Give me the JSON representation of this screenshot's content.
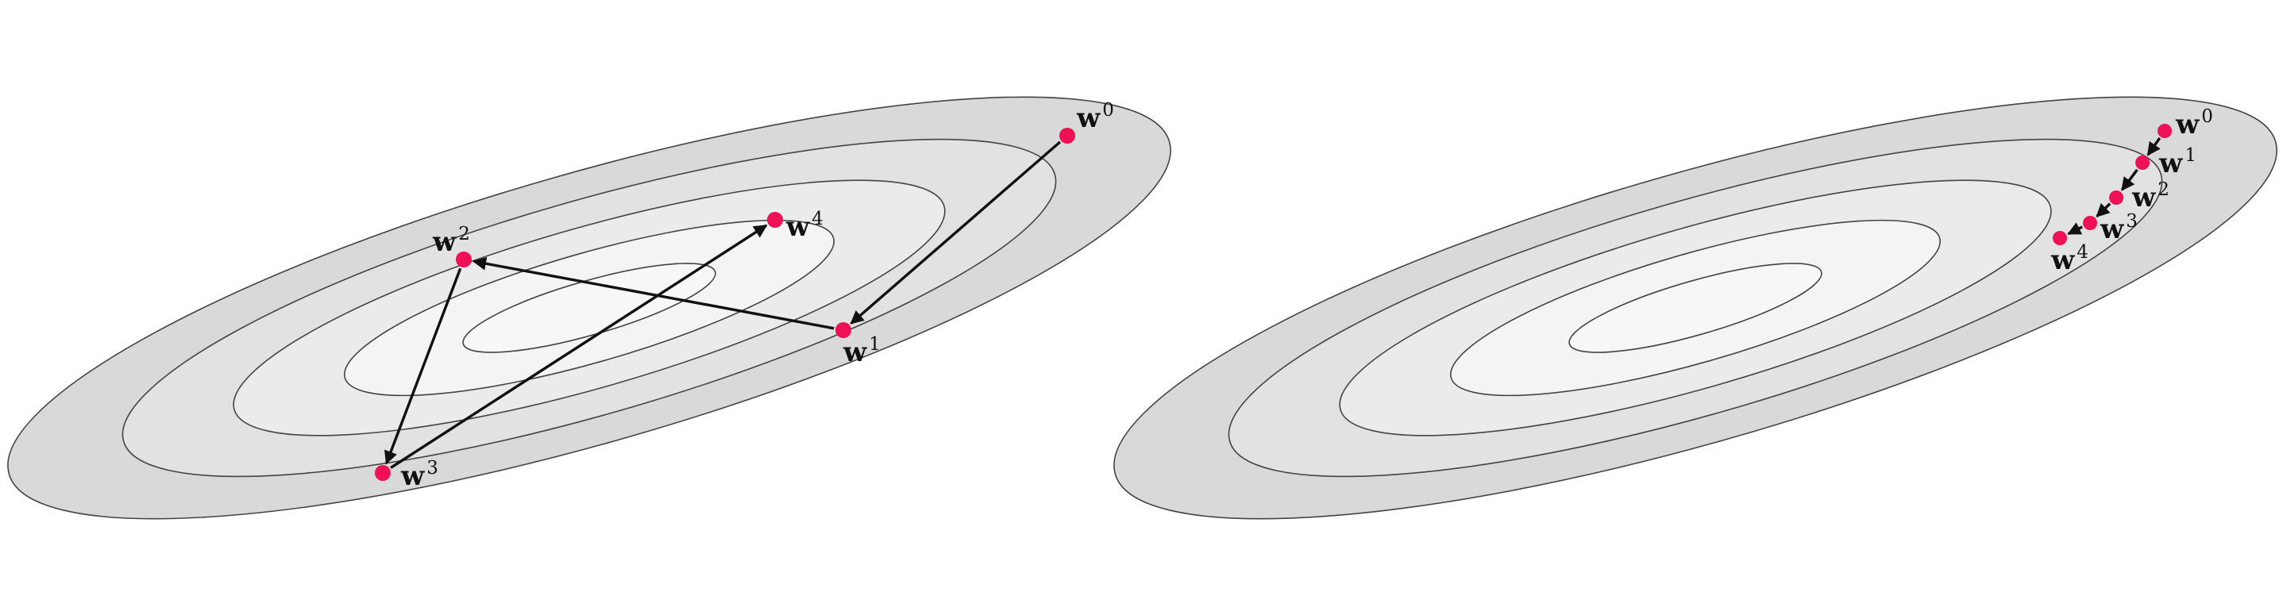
{
  "colors": {
    "background": "#ffffff",
    "point": "#ee1155",
    "arrow": "#111111",
    "contour_stroke": "#444444",
    "contour_fills": [
      "#d9d9d9",
      "#e2e2e2",
      "#ebebeb",
      "#f4f4f4",
      "#f7f7f7"
    ]
  },
  "panels": [
    {
      "name": "oscillating-descent",
      "points": [
        {
          "base": "w",
          "sup": "0"
        },
        {
          "base": "w",
          "sup": "1"
        },
        {
          "base": "w",
          "sup": "2"
        },
        {
          "base": "w",
          "sup": "3"
        },
        {
          "base": "w",
          "sup": "4"
        }
      ]
    },
    {
      "name": "slow-descent",
      "points": [
        {
          "base": "w",
          "sup": "0"
        },
        {
          "base": "w",
          "sup": "1"
        },
        {
          "base": "w",
          "sup": "2"
        },
        {
          "base": "w",
          "sup": "3"
        },
        {
          "base": "w",
          "sup": "4"
        }
      ]
    }
  ]
}
